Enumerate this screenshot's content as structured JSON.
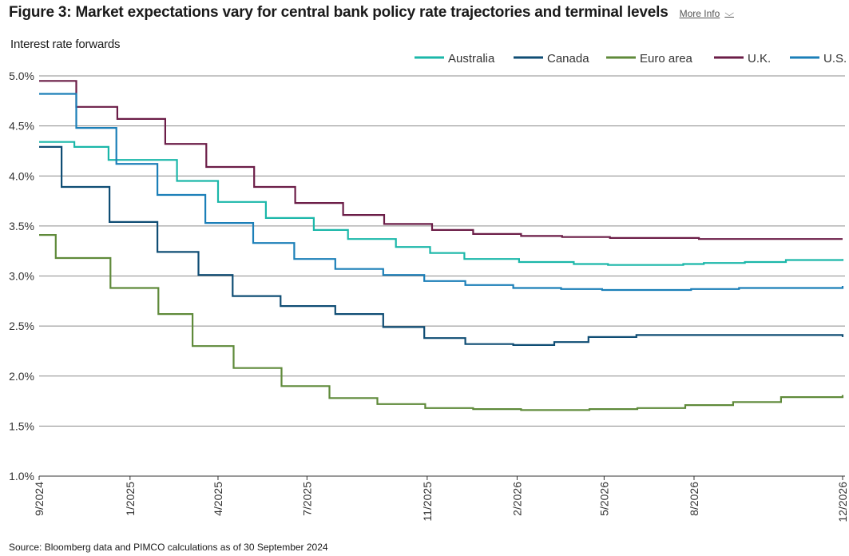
{
  "header": {
    "title": "Figure 3: Market expectations vary for central bank policy rate trajectories and terminal levels",
    "more_info_label": "More Info",
    "more_info_icon": "chevron-down-icon"
  },
  "footer": {
    "source": "Source: Bloomberg data and PIMCO calculations as of 30 September 2024"
  },
  "chart_data": {
    "type": "line",
    "ylabel": "Interest rate forwards",
    "xlabel": "",
    "ylim": [
      1.0,
      5.0
    ],
    "yticks": [
      {
        "value": 5.0,
        "label": "5.0%"
      },
      {
        "value": 4.5,
        "label": "4.5%"
      },
      {
        "value": 4.0,
        "label": "4.0%"
      },
      {
        "value": 3.5,
        "label": "3.5%"
      },
      {
        "value": 3.0,
        "label": "3.0%"
      },
      {
        "value": 2.5,
        "label": "2.5%"
      },
      {
        "value": 2.0,
        "label": "2.0%"
      },
      {
        "value": 1.5,
        "label": "1.5%"
      },
      {
        "value": 1.0,
        "label": "1.0%"
      }
    ],
    "xlim": [
      "2024-09-30",
      "2026-12-31"
    ],
    "xticks": [
      {
        "date": "2024-09-30",
        "label": "9/2024"
      },
      {
        "date": "2025-01-01",
        "label": "1/2025"
      },
      {
        "date": "2025-04-01",
        "label": "4/2025"
      },
      {
        "date": "2025-07-01",
        "label": "7/2025"
      },
      {
        "date": "2025-11-01",
        "label": "11/2025"
      },
      {
        "date": "2026-02-01",
        "label": "2/2026"
      },
      {
        "date": "2026-05-01",
        "label": "5/2026"
      },
      {
        "date": "2026-08-01",
        "label": "8/2026"
      },
      {
        "date": "2026-12-31",
        "label": "12/2026"
      }
    ],
    "grid": true,
    "legend_position": "top-right",
    "series": [
      {
        "name": "Australia",
        "color": "#1bb7a9",
        "step": true,
        "points": [
          [
            "2024-09-30",
            4.34
          ],
          [
            "2024-11-05",
            4.29
          ],
          [
            "2024-12-10",
            4.16
          ],
          [
            "2025-02-18",
            3.95
          ],
          [
            "2025-04-01",
            3.74
          ],
          [
            "2025-05-20",
            3.58
          ],
          [
            "2025-07-08",
            3.46
          ],
          [
            "2025-08-12",
            3.37
          ],
          [
            "2025-09-30",
            3.29
          ],
          [
            "2025-11-04",
            3.23
          ],
          [
            "2025-12-09",
            3.17
          ],
          [
            "2026-02-03",
            3.14
          ],
          [
            "2026-03-31",
            3.12
          ],
          [
            "2026-05-05",
            3.11
          ],
          [
            "2026-06-16",
            3.11
          ],
          [
            "2026-07-21",
            3.12
          ],
          [
            "2026-08-11",
            3.13
          ],
          [
            "2026-09-22",
            3.14
          ],
          [
            "2026-11-03",
            3.16
          ],
          [
            "2026-12-31",
            3.17
          ]
        ]
      },
      {
        "name": "Canada",
        "color": "#0f4d74",
        "step": true,
        "points": [
          [
            "2024-09-30",
            4.29
          ],
          [
            "2024-10-23",
            3.89
          ],
          [
            "2024-12-11",
            3.54
          ],
          [
            "2025-01-29",
            3.24
          ],
          [
            "2025-03-12",
            3.01
          ],
          [
            "2025-04-16",
            2.8
          ],
          [
            "2025-06-04",
            2.7
          ],
          [
            "2025-07-30",
            2.62
          ],
          [
            "2025-09-17",
            2.49
          ],
          [
            "2025-10-29",
            2.38
          ],
          [
            "2025-12-10",
            2.32
          ],
          [
            "2026-01-28",
            2.31
          ],
          [
            "2026-03-11",
            2.34
          ],
          [
            "2026-04-15",
            2.39
          ],
          [
            "2026-06-03",
            2.41
          ],
          [
            "2026-09-01",
            2.41
          ],
          [
            "2026-12-31",
            2.39
          ]
        ]
      },
      {
        "name": "Euro area",
        "color": "#5f8a3a",
        "step": true,
        "points": [
          [
            "2024-09-30",
            3.41
          ],
          [
            "2024-10-17",
            3.18
          ],
          [
            "2024-12-12",
            2.88
          ],
          [
            "2025-01-30",
            2.62
          ],
          [
            "2025-03-06",
            2.3
          ],
          [
            "2025-04-17",
            2.08
          ],
          [
            "2025-06-05",
            1.9
          ],
          [
            "2025-07-24",
            1.78
          ],
          [
            "2025-09-11",
            1.72
          ],
          [
            "2025-10-30",
            1.68
          ],
          [
            "2025-12-18",
            1.67
          ],
          [
            "2026-02-05",
            1.66
          ],
          [
            "2026-04-16",
            1.67
          ],
          [
            "2026-06-04",
            1.68
          ],
          [
            "2026-07-23",
            1.71
          ],
          [
            "2026-09-10",
            1.74
          ],
          [
            "2026-10-29",
            1.79
          ],
          [
            "2026-12-31",
            1.81
          ]
        ]
      },
      {
        "name": "U.K.",
        "color": "#6b1d47",
        "step": true,
        "points": [
          [
            "2024-09-30",
            4.95
          ],
          [
            "2024-11-07",
            4.69
          ],
          [
            "2024-12-19",
            4.57
          ],
          [
            "2025-02-06",
            4.32
          ],
          [
            "2025-03-20",
            4.09
          ],
          [
            "2025-05-08",
            3.89
          ],
          [
            "2025-06-19",
            3.73
          ],
          [
            "2025-08-07",
            3.61
          ],
          [
            "2025-09-18",
            3.52
          ],
          [
            "2025-11-06",
            3.46
          ],
          [
            "2025-12-18",
            3.42
          ],
          [
            "2026-02-05",
            3.4
          ],
          [
            "2026-03-19",
            3.39
          ],
          [
            "2026-05-07",
            3.38
          ],
          [
            "2026-06-18",
            3.38
          ],
          [
            "2026-08-06",
            3.37
          ],
          [
            "2026-12-31",
            3.37
          ]
        ]
      },
      {
        "name": "U.S.",
        "color": "#1b7fb8",
        "step": true,
        "points": [
          [
            "2024-09-30",
            4.82
          ],
          [
            "2024-11-07",
            4.48
          ],
          [
            "2024-12-18",
            4.12
          ],
          [
            "2025-01-29",
            3.81
          ],
          [
            "2025-03-19",
            3.53
          ],
          [
            "2025-05-07",
            3.33
          ],
          [
            "2025-06-18",
            3.17
          ],
          [
            "2025-07-30",
            3.07
          ],
          [
            "2025-09-17",
            3.01
          ],
          [
            "2025-10-29",
            2.95
          ],
          [
            "2025-12-10",
            2.91
          ],
          [
            "2026-01-28",
            2.88
          ],
          [
            "2026-03-18",
            2.87
          ],
          [
            "2026-04-29",
            2.86
          ],
          [
            "2026-06-17",
            2.86
          ],
          [
            "2026-07-29",
            2.87
          ],
          [
            "2026-09-16",
            2.88
          ],
          [
            "2026-12-31",
            2.9
          ]
        ]
      }
    ]
  }
}
